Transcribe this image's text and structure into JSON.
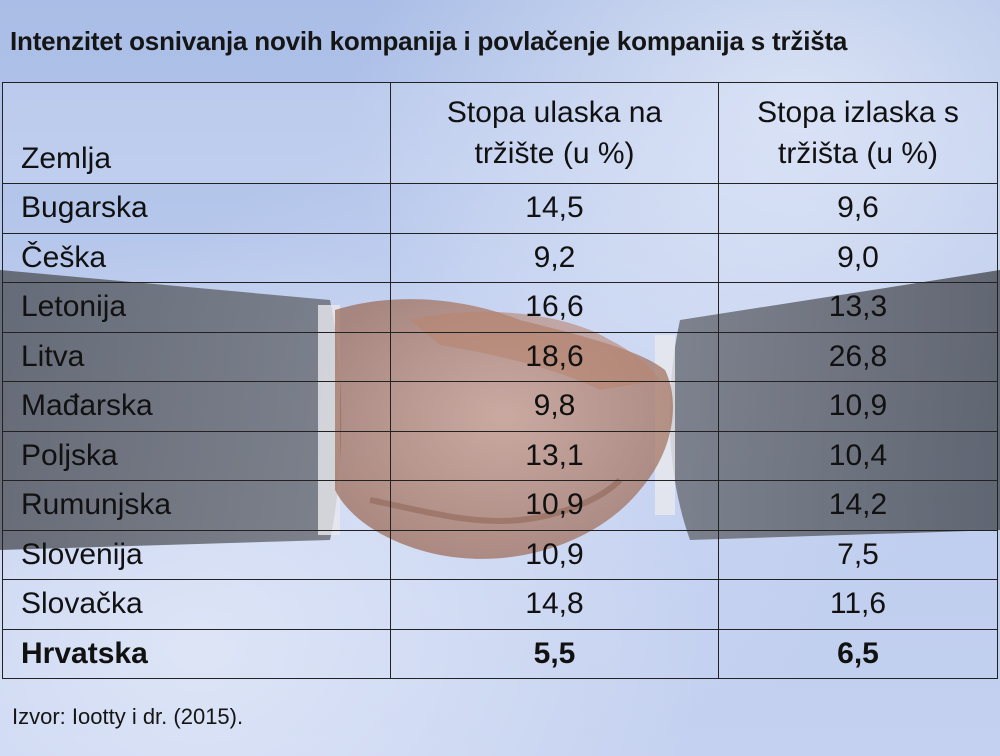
{
  "title": "Intenzitet osnivanja novih kompanija i povlačenje kompanija s tržišta",
  "table": {
    "headers": {
      "country": "Zemlja",
      "entry_line1": "Stopa ulaska na",
      "entry_line2": "tržište (u %)",
      "exit_line1": "Stopa izlaska s",
      "exit_line2": "tržišta (u %)"
    },
    "rows": [
      {
        "country": "Bugarska",
        "entry": "14,5",
        "exit": "9,6"
      },
      {
        "country": "Češka",
        "entry": "9,2",
        "exit": "9,0"
      },
      {
        "country": "Letonija",
        "entry": "16,6",
        "exit": "13,3"
      },
      {
        "country": "Litva",
        "entry": "18,6",
        "exit": "26,8"
      },
      {
        "country": "Mađarska",
        "entry": "9,8",
        "exit": "10,9"
      },
      {
        "country": "Poljska",
        "entry": "13,1",
        "exit": "10,4"
      },
      {
        "country": "Rumunjska",
        "entry": "10,9",
        "exit": "14,2"
      },
      {
        "country": "Slovenija",
        "entry": "10,9",
        "exit": "7,5"
      },
      {
        "country": "Slovačka",
        "entry": "14,8",
        "exit": "11,6"
      },
      {
        "country": "Hrvatska",
        "entry": "5,5",
        "exit": "6,5",
        "highlight": true
      }
    ]
  },
  "footer": "Izvor: Iootty i dr. (2015).",
  "background": {
    "image_subject": "handshake-illustration",
    "sky_color": "#b5c6ec"
  }
}
